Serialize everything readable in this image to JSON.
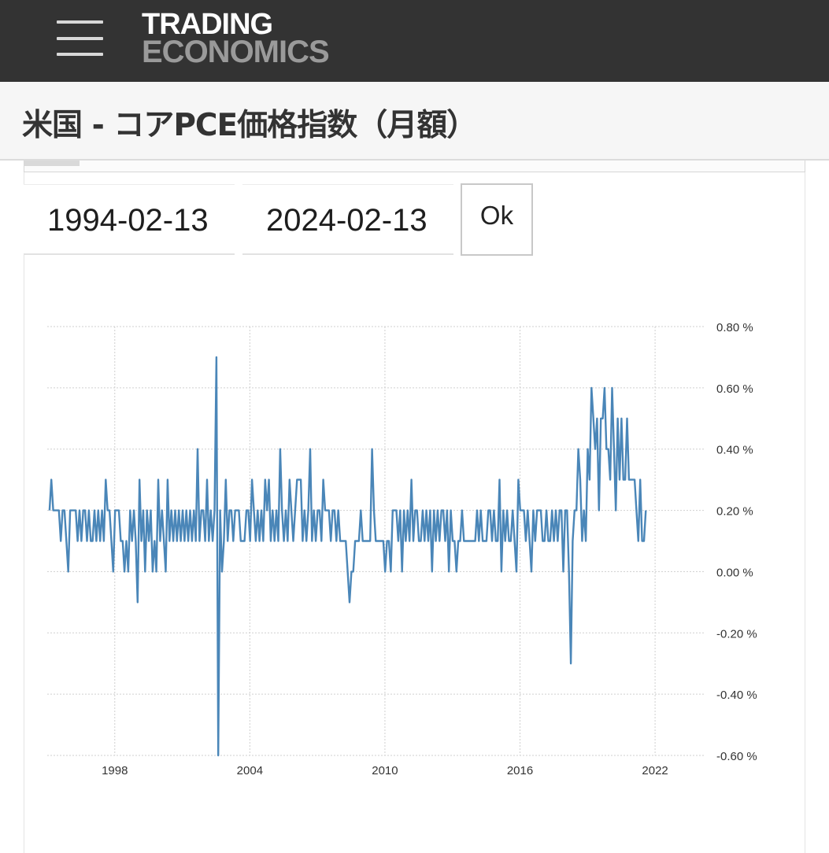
{
  "header": {
    "logo_line1": "TRADING",
    "logo_line2": "ECONOMICS",
    "menu_icon": "hamburger-menu-icon"
  },
  "page": {
    "title": "米国 - コアPCE価格指数（月額）"
  },
  "date_range": {
    "start": "1994-02-13",
    "end": "2024-02-13",
    "ok_label": "Ok"
  },
  "colors": {
    "series": "#4a86b8",
    "topbar": "#333333"
  },
  "chart_data": {
    "type": "line",
    "x_ticks": [
      "1998",
      "2004",
      "2010",
      "2016",
      "2022"
    ],
    "y_ticks": [
      "0.80 %",
      "0.60 %",
      "0.40 %",
      "0.20 %",
      "0.00 %",
      "-0.20 %",
      "-0.40 %",
      "-0.60 %"
    ],
    "ylim": [
      -0.6,
      0.8
    ],
    "xlim": [
      1995.0,
      2024.2
    ],
    "grid": true,
    "y_axis_side": "right",
    "series": [
      {
        "start": 1995.1,
        "step": 0.0833,
        "values": [
          0.2,
          0.3,
          0.2,
          0.2,
          0.2,
          0.2,
          0.1,
          0.2,
          0.2,
          0.1,
          0.0,
          0.2,
          0.2,
          0.2,
          0.2,
          0.1,
          0.2,
          0.1,
          0.2,
          0.2,
          0.1,
          0.2,
          0.1,
          0.1,
          0.2,
          0.1,
          0.2,
          0.1,
          0.2,
          0.1,
          0.3,
          0.2,
          0.2,
          0.1,
          0.0,
          0.2,
          0.2,
          0.2,
          0.1,
          0.1,
          0.0,
          0.1,
          0.0,
          0.2,
          0.1,
          0.2,
          0.1,
          -0.1,
          0.3,
          0.1,
          0.2,
          0.0,
          0.2,
          0.1,
          0.2,
          0.0,
          0.1,
          0.0,
          0.3,
          0.1,
          0.2,
          0.1,
          0.0,
          0.3,
          0.1,
          0.2,
          0.1,
          0.2,
          0.1,
          0.2,
          0.1,
          0.2,
          0.1,
          0.2,
          0.1,
          0.2,
          0.1,
          0.2,
          0.1,
          0.4,
          0.1,
          0.2,
          0.2,
          0.1,
          0.3,
          0.1,
          0.2,
          0.1,
          0.2,
          0.7,
          -0.6,
          0.2,
          0.0,
          0.1,
          0.3,
          0.1,
          0.2,
          0.2,
          0.1,
          0.2,
          0.2,
          0.2,
          0.1,
          0.1,
          0.1,
          0.2,
          0.2,
          0.1,
          0.3,
          0.2,
          0.1,
          0.2,
          0.1,
          0.2,
          0.1,
          0.3,
          0.2,
          0.3,
          0.1,
          0.2,
          0.1,
          0.2,
          0.1,
          0.4,
          0.2,
          0.1,
          0.2,
          0.1,
          0.3,
          0.2,
          0.1,
          0.2,
          0.3,
          0.3,
          0.3,
          0.1,
          0.2,
          0.1,
          0.2,
          0.4,
          0.1,
          0.2,
          0.1,
          0.2,
          0.2,
          0.1,
          0.3,
          0.2,
          0.2,
          0.2,
          0.1,
          0.2,
          0.2,
          0.1,
          0.2,
          0.1,
          0.1,
          0.1,
          0.1,
          0.0,
          -0.1,
          0.0,
          0.0,
          0.1,
          0.1,
          0.1,
          0.2,
          0.1,
          0.1,
          0.1,
          0.1,
          0.1,
          0.4,
          0.2,
          0.1,
          0.1,
          0.1,
          0.1,
          0.1,
          0.0,
          0.1,
          0.1,
          0.0,
          0.2,
          0.2,
          0.2,
          0.1,
          0.2,
          0.0,
          0.2,
          0.1,
          0.2,
          0.1,
          0.3,
          0.1,
          0.2,
          0.2,
          0.1,
          0.1,
          0.2,
          0.1,
          0.2,
          0.1,
          0.2,
          0.0,
          0.2,
          0.1,
          0.2,
          0.1,
          0.2,
          0.2,
          0.1,
          0.2,
          0.0,
          0.2,
          0.1,
          0.1,
          0.0,
          0.1,
          0.1,
          0.2,
          0.1,
          0.1,
          0.1,
          0.1,
          0.1,
          0.1,
          0.1,
          0.2,
          0.1,
          0.2,
          0.1,
          0.1,
          0.1,
          0.2,
          0.2,
          0.1,
          0.2,
          0.1,
          0.1,
          0.3,
          0.0,
          0.2,
          0.1,
          0.2,
          0.1,
          0.1,
          0.2,
          0.1,
          0.0,
          0.3,
          0.2,
          0.2,
          0.2,
          0.1,
          0.2,
          0.1,
          0.0,
          0.2,
          0.1,
          0.2,
          0.2,
          0.2,
          0.1,
          0.1,
          0.2,
          0.1,
          0.1,
          0.2,
          0.1,
          0.2,
          0.1,
          0.2,
          0.2,
          0.0,
          0.2,
          0.2,
          0.0,
          -0.3,
          0.1,
          0.2,
          0.2,
          0.4,
          0.3,
          0.1,
          0.2,
          0.1,
          0.4,
          0.3,
          0.6,
          0.5,
          0.4,
          0.5,
          0.2,
          0.5,
          0.5,
          0.6,
          0.4,
          0.4,
          0.3,
          0.6,
          0.4,
          0.2,
          0.5,
          0.3,
          0.5,
          0.3,
          0.3,
          0.5,
          0.3,
          0.3,
          0.3,
          0.3,
          0.2,
          0.1,
          0.3,
          0.1,
          0.1,
          0.2
        ]
      }
    ]
  }
}
